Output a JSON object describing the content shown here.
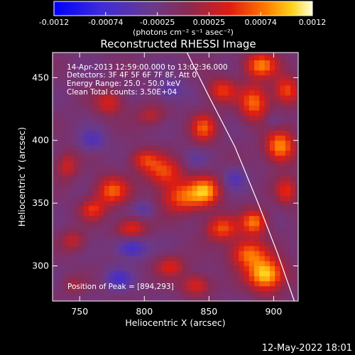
{
  "chart_data": {
    "type": "heatmap",
    "title": "Reconstructed RHESSI Image",
    "xlabel": "Heliocentric X (arcsec)",
    "ylabel": "Heliocentric Y (arcsec)",
    "xlim": [
      729,
      919
    ],
    "ylim": [
      272,
      470
    ],
    "xticks": [
      750,
      800,
      850,
      900
    ],
    "yticks": [
      300,
      350,
      400,
      450
    ],
    "colorbar": {
      "ticks": [
        "-0.0012",
        "-0.00074",
        "-0.00025",
        "0.00025",
        "0.00074",
        "0.0012"
      ],
      "unit_label": "(photons cm⁻² s⁻¹ asec⁻²)",
      "range": [
        -0.0012,
        0.0012
      ]
    },
    "annotations": [
      "14-Apr-2013 12:59:00.000 to 13:02:36.000",
      "Detectors: 3F 4F 5F 6F 7F 8F, Att 0",
      "Energy Range: 25.0 - 50.0 keV",
      "Clean     Total counts: 3.50E+04"
    ],
    "peak_label": "Position of Peak = [894,293]",
    "peak": {
      "x": 894,
      "y": 293
    },
    "limb_points": [
      [
        833,
        470
      ],
      [
        850,
        435
      ],
      [
        870,
        395
      ],
      [
        888,
        350
      ],
      [
        903,
        310
      ],
      [
        916,
        272
      ]
    ],
    "hotspots": [
      {
        "x": 894,
        "y": 293,
        "v": 0.0012,
        "sx": 10,
        "sy": 9
      },
      {
        "x": 880,
        "y": 310,
        "v": 0.00085,
        "sx": 10,
        "sy": 8
      },
      {
        "x": 885,
        "y": 335,
        "v": 0.0009,
        "sx": 7,
        "sy": 7
      },
      {
        "x": 860,
        "y": 330,
        "v": 0.00075,
        "sx": 9,
        "sy": 7
      },
      {
        "x": 848,
        "y": 360,
        "v": 0.00085,
        "sx": 8,
        "sy": 8
      },
      {
        "x": 830,
        "y": 355,
        "v": 0.0008,
        "sx": 12,
        "sy": 9
      },
      {
        "x": 815,
        "y": 375,
        "v": 0.0007,
        "sx": 10,
        "sy": 8
      },
      {
        "x": 800,
        "y": 385,
        "v": 0.0006,
        "sx": 8,
        "sy": 6
      },
      {
        "x": 790,
        "y": 330,
        "v": 0.00065,
        "sx": 8,
        "sy": 6
      },
      {
        "x": 775,
        "y": 360,
        "v": 0.0008,
        "sx": 9,
        "sy": 8
      },
      {
        "x": 760,
        "y": 345,
        "v": 0.0006,
        "sx": 7,
        "sy": 6
      },
      {
        "x": 745,
        "y": 320,
        "v": 0.00045,
        "sx": 7,
        "sy": 6
      },
      {
        "x": 740,
        "y": 380,
        "v": 0.0005,
        "sx": 6,
        "sy": 8
      },
      {
        "x": 773,
        "y": 430,
        "v": 0.00055,
        "sx": 8,
        "sy": 7
      },
      {
        "x": 805,
        "y": 420,
        "v": 0.0004,
        "sx": 8,
        "sy": 6
      },
      {
        "x": 846,
        "y": 410,
        "v": 0.00075,
        "sx": 7,
        "sy": 8
      },
      {
        "x": 860,
        "y": 440,
        "v": 0.00065,
        "sx": 8,
        "sy": 7
      },
      {
        "x": 885,
        "y": 430,
        "v": 0.00085,
        "sx": 8,
        "sy": 10
      },
      {
        "x": 905,
        "y": 395,
        "v": 0.001,
        "sx": 8,
        "sy": 9
      },
      {
        "x": 890,
        "y": 460,
        "v": 0.0009,
        "sx": 9,
        "sy": 7
      },
      {
        "x": 910,
        "y": 440,
        "v": 0.00075,
        "sx": 7,
        "sy": 8
      },
      {
        "x": 910,
        "y": 360,
        "v": 0.0006,
        "sx": 6,
        "sy": 8
      },
      {
        "x": 820,
        "y": 300,
        "v": 0.00055,
        "sx": 8,
        "sy": 6
      },
      {
        "x": 840,
        "y": 285,
        "v": 0.0006,
        "sx": 8,
        "sy": 6
      },
      {
        "x": 745,
        "y": 285,
        "v": 0.0003,
        "sx": 6,
        "sy": 5
      },
      {
        "x": 790,
        "y": 315,
        "v": -0.0006,
        "sx": 8,
        "sy": 6
      },
      {
        "x": 780,
        "y": 290,
        "v": -0.00045,
        "sx": 7,
        "sy": 6
      },
      {
        "x": 760,
        "y": 400,
        "v": -0.0004,
        "sx": 7,
        "sy": 6
      },
      {
        "x": 820,
        "y": 440,
        "v": -0.00035,
        "sx": 8,
        "sy": 6
      },
      {
        "x": 870,
        "y": 370,
        "v": -0.00035,
        "sx": 6,
        "sy": 6
      },
      {
        "x": 900,
        "y": 415,
        "v": -0.00025,
        "sx": 5,
        "sy": 5
      },
      {
        "x": 840,
        "y": 385,
        "v": -0.0002,
        "sx": 6,
        "sy": 5
      },
      {
        "x": 800,
        "y": 345,
        "v": -0.0003,
        "sx": 6,
        "sy": 5
      }
    ]
  },
  "footer": {
    "timestamp": "12-May-2022 18:01"
  }
}
